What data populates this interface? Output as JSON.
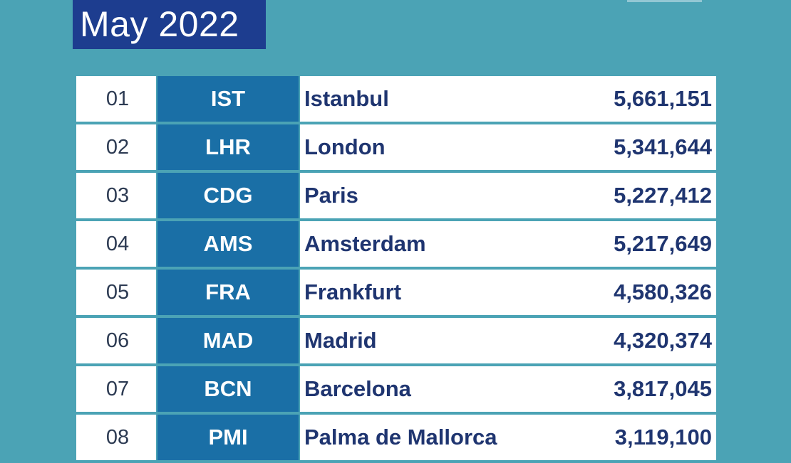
{
  "header": {
    "title": "May 2022"
  },
  "table": {
    "rows": [
      {
        "rank": "01",
        "code": "IST",
        "city": "Istanbul",
        "passengers": "5,661,151"
      },
      {
        "rank": "02",
        "code": "LHR",
        "city": "London",
        "passengers": "5,341,644"
      },
      {
        "rank": "03",
        "code": "CDG",
        "city": "Paris",
        "passengers": "5,227,412"
      },
      {
        "rank": "04",
        "code": "AMS",
        "city": "Amsterdam",
        "passengers": "5,217,649"
      },
      {
        "rank": "05",
        "code": "FRA",
        "city": "Frankfurt",
        "passengers": "4,580,326"
      },
      {
        "rank": "06",
        "code": "MAD",
        "city": "Madrid",
        "passengers": "4,320,374"
      },
      {
        "rank": "07",
        "code": "BCN",
        "city": "Barcelona",
        "passengers": "3,817,045"
      },
      {
        "rank": "08",
        "code": "PMI",
        "city": "Palma de Mallorca",
        "passengers": "3,119,100"
      }
    ]
  },
  "colors": {
    "background": "#4ba3b5",
    "title_box": "#1d3d8f",
    "code_cell": "#1a6fa6",
    "text_dark": "#1f3570"
  }
}
